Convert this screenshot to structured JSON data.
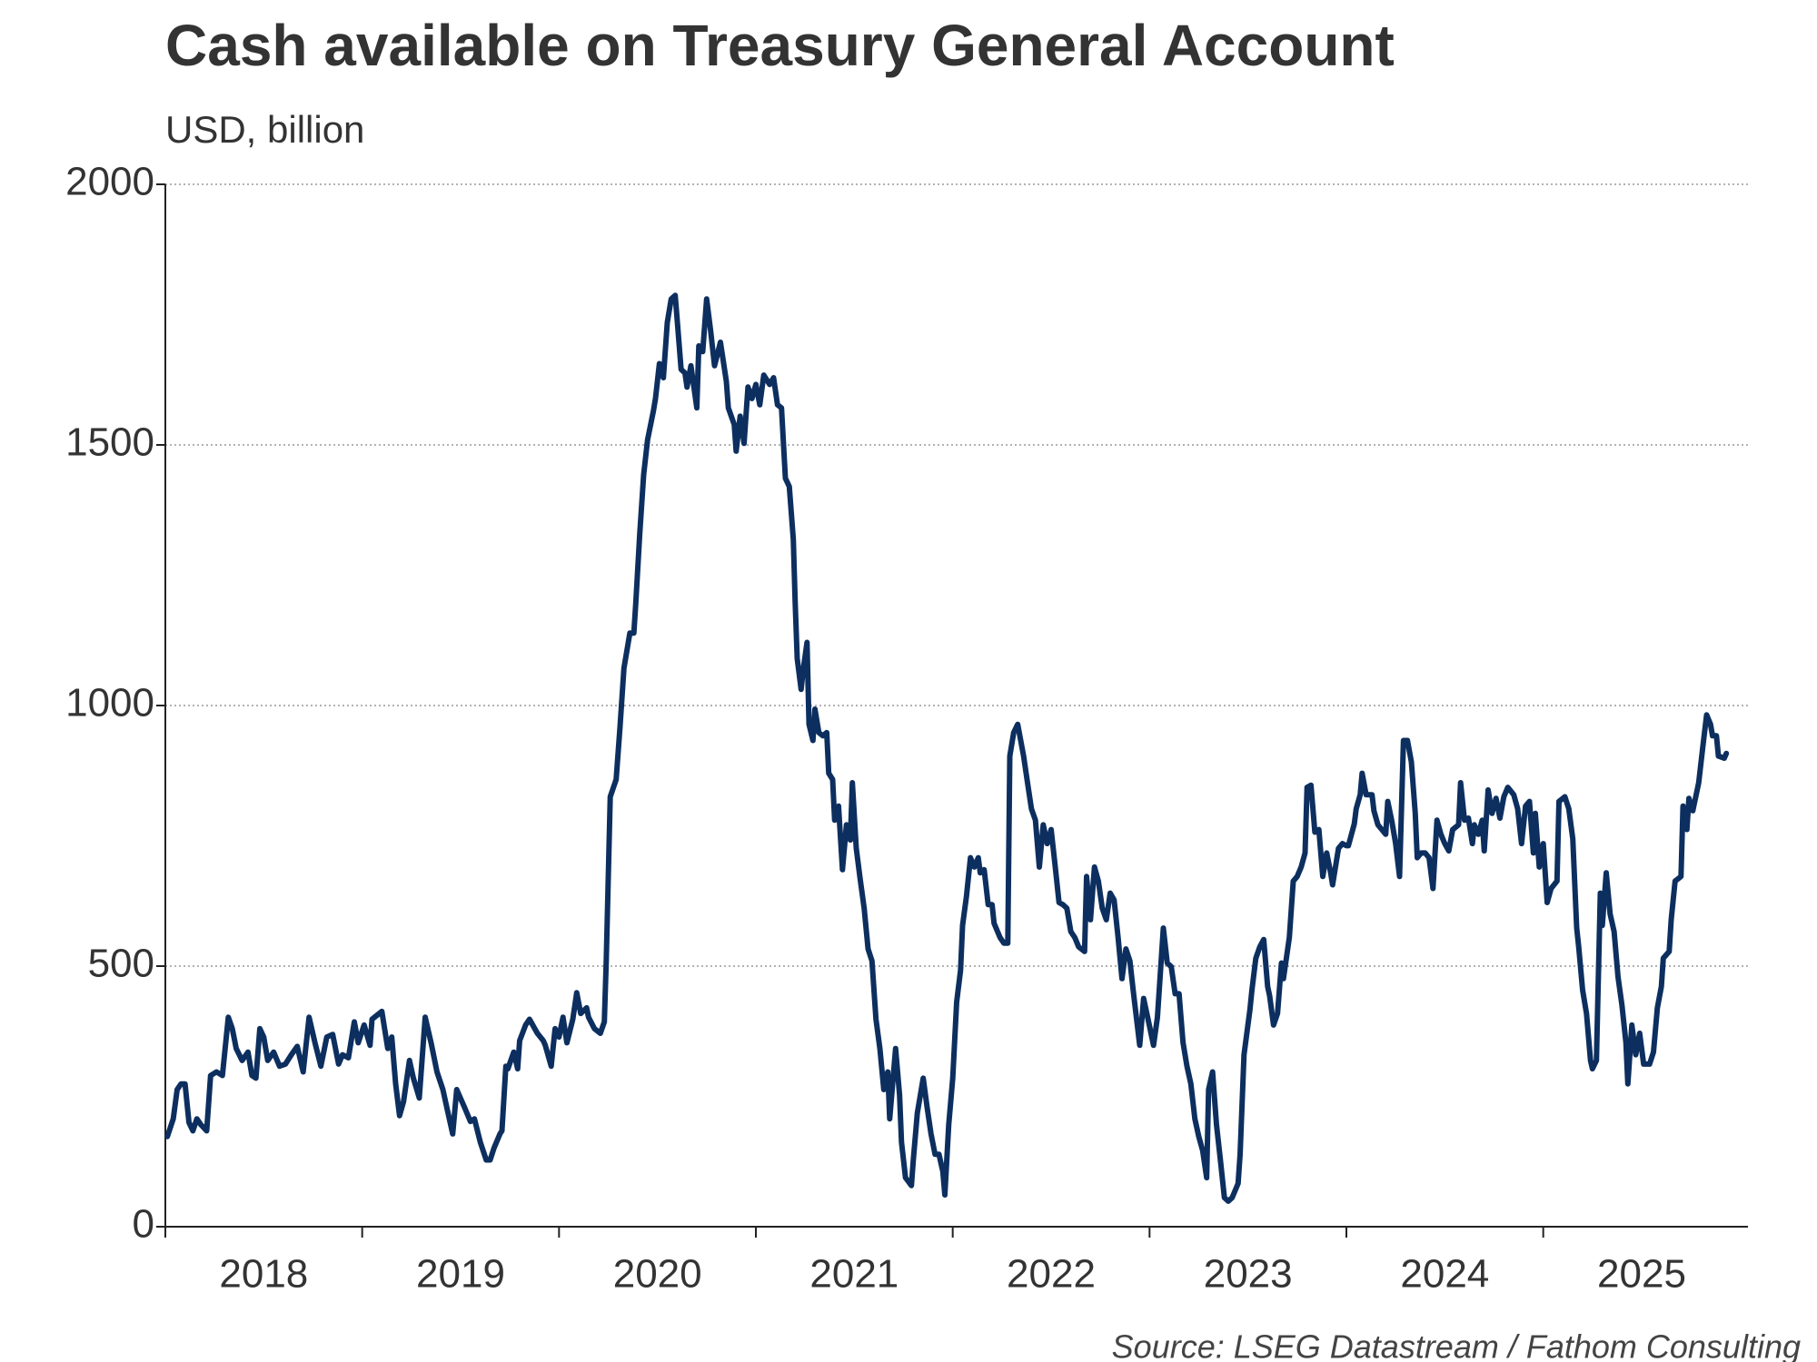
{
  "chart_data": {
    "type": "line",
    "title": "Cash available on Treasury General Account",
    "subtitle": "USD, billion",
    "source": "Source: LSEG Datastream / Fathom Consulting",
    "color": "#0d2f5f",
    "grid": true,
    "xlim": [
      2018,
      2026.04
    ],
    "ylim": [
      0,
      2000
    ],
    "yticks": [
      0,
      500,
      1000,
      1500,
      2000
    ],
    "xticks": [
      2018,
      2019,
      2020,
      2021,
      2022,
      2023,
      2024,
      2025
    ],
    "x": [
      2018.01,
      2018.04,
      2018.06,
      2018.08,
      2018.1,
      2018.12,
      2018.14,
      2018.16,
      2018.18,
      2018.21,
      2018.23,
      2018.26,
      2018.29,
      2018.32,
      2018.34,
      2018.36,
      2018.39,
      2018.42,
      2018.44,
      2018.46,
      2018.48,
      2018.5,
      2018.52,
      2018.55,
      2018.58,
      2018.61,
      2018.64,
      2018.67,
      2018.7,
      2018.73,
      2018.76,
      2018.79,
      2018.82,
      2018.85,
      2018.88,
      2018.9,
      2018.93,
      2018.96,
      2018.98,
      2019.01,
      2019.04,
      2019.05,
      2019.1,
      2019.13,
      2019.15,
      2019.17,
      2019.19,
      2019.21,
      2019.24,
      2019.26,
      2019.29,
      2019.32,
      2019.35,
      2019.38,
      2019.41,
      2019.43,
      2019.46,
      2019.48,
      2019.52,
      2019.55,
      2019.57,
      2019.6,
      2019.63,
      2019.65,
      2019.67,
      2019.7,
      2019.71,
      2019.73,
      2019.74,
      2019.77,
      2019.79,
      2019.8,
      2019.83,
      2019.85,
      2019.89,
      2019.92,
      2019.93,
      2019.96,
      2019.98,
      2020.0,
      2020.02,
      2020.04,
      2020.07,
      2020.09,
      2020.11,
      2020.14,
      2020.15,
      2020.18,
      2020.21,
      2020.23,
      2020.24,
      2020.26,
      2020.29,
      2020.31,
      2020.33,
      2020.36,
      2020.38,
      2020.39,
      2020.41,
      2020.43,
      2020.45,
      2020.48,
      2020.49,
      2020.51,
      2020.53,
      2020.55,
      2020.57,
      2020.59,
      2020.6,
      2020.62,
      2020.64,
      2020.65,
      2020.67,
      2020.7,
      2020.71,
      2020.73,
      2020.75,
      2020.77,
      2020.79,
      2020.8,
      2020.82,
      2020.85,
      2020.86,
      2020.89,
      2020.9,
      2020.92,
      2020.94,
      2020.96,
      2020.98,
      2021.0,
      2021.02,
      2021.04,
      2021.07,
      2021.09,
      2021.11,
      2021.13,
      2021.15,
      2021.17,
      2021.19,
      2021.2,
      2021.21,
      2021.23,
      2021.24,
      2021.26,
      2021.27,
      2021.29,
      2021.3,
      2021.32,
      2021.34,
      2021.36,
      2021.37,
      2021.39,
      2021.4,
      2021.42,
      2021.44,
      2021.46,
      2021.48,
      2021.49,
      2021.51,
      2021.53,
      2021.55,
      2021.57,
      2021.59,
      2021.61,
      2021.63,
      2021.65,
      2021.67,
      2021.68,
      2021.71,
      2021.73,
      2021.74,
      2021.76,
      2021.79,
      2021.8,
      2021.82,
      2021.85,
      2021.87,
      2021.89,
      2021.91,
      2021.93,
      2021.95,
      2021.96,
      2021.98,
      2022.0,
      2022.02,
      2022.04,
      2022.05,
      2022.07,
      2022.09,
      2022.11,
      2022.13,
      2022.14,
      2022.16,
      2022.18,
      2022.2,
      2022.21,
      2022.24,
      2022.26,
      2022.28,
      2022.29,
      2022.31,
      2022.33,
      2022.36,
      2022.38,
      2022.4,
      2022.42,
      2022.44,
      2022.46,
      2022.48,
      2022.5,
      2022.52,
      2022.54,
      2022.56,
      2022.58,
      2022.6,
      2022.62,
      2022.64,
      2022.67,
      2022.68,
      2022.7,
      2022.72,
      2022.74,
      2022.76,
      2022.78,
      2022.8,
      2022.82,
      2022.84,
      2022.86,
      2022.88,
      2022.9,
      2022.92,
      2022.95,
      2022.97,
      2022.99,
      2023.02,
      2023.04,
      2023.07,
      2023.09,
      2023.11,
      2023.13,
      2023.15,
      2023.17,
      2023.19,
      2023.21,
      2023.23,
      2023.25,
      2023.27,
      2023.29,
      2023.3,
      2023.32,
      2023.34,
      2023.36,
      2023.38,
      2023.4,
      2023.42,
      2023.45,
      2023.46,
      2023.48,
      2023.51,
      2023.52,
      2023.54,
      2023.56,
      2023.58,
      2023.6,
      2023.61,
      2023.63,
      2023.65,
      2023.67,
      2023.68,
      2023.71,
      2023.73,
      2023.75,
      2023.77,
      2023.79,
      2023.8,
      2023.82,
      2023.84,
      2023.86,
      2023.88,
      2023.9,
      2023.92,
      2023.93,
      2023.96,
      2023.98,
      2024.0,
      2024.01,
      2024.04,
      2024.05,
      2024.07,
      2024.08,
      2024.1,
      2024.13,
      2024.14,
      2024.16,
      2024.18,
      2024.2,
      2024.21,
      2024.23,
      2024.25,
      2024.27,
      2024.29,
      2024.31,
      2024.33,
      2024.35,
      2024.36,
      2024.38,
      2024.4,
      2024.42,
      2024.44,
      2024.46,
      2024.48,
      2024.5,
      2024.52,
      2024.54,
      2024.57,
      2024.58,
      2024.6,
      2024.62,
      2024.64,
      2024.65,
      2024.67,
      2024.69,
      2024.7,
      2024.72,
      2024.74,
      2024.76,
      2024.78,
      2024.8,
      2024.82,
      2024.85,
      2024.87,
      2024.89,
      2024.91,
      2024.93,
      2024.95,
      2024.96,
      2024.98,
      2025.0,
      2025.02,
      2025.04,
      2025.07,
      2025.08,
      2025.11,
      2025.13,
      2025.15,
      2025.17,
      2025.18,
      2025.2,
      2025.22,
      2025.24,
      2025.25,
      2025.27,
      2025.29,
      2025.3,
      2025.32,
      2025.34,
      2025.36,
      2025.38,
      2025.4,
      2025.42,
      2025.43,
      2025.45,
      2025.47,
      2025.49,
      2025.51,
      2025.54,
      2025.56,
      2025.58,
      2025.6,
      2025.61,
      2025.64,
      2025.65,
      2025.67,
      2025.7,
      2025.71,
      2025.73,
      2025.74,
      2025.76,
      2025.79,
      2025.81,
      2025.83,
      2025.85,
      2025.86,
      2025.88,
      2025.89,
      2025.92,
      2025.93
    ],
    "values": [
      173,
      207,
      263,
      274,
      274,
      200,
      184,
      207,
      196,
      184,
      290,
      297,
      290,
      402,
      380,
      342,
      319,
      335,
      290,
      285,
      380,
      364,
      319,
      335,
      308,
      312,
      330,
      346,
      297,
      402,
      353,
      308,
      364,
      369,
      312,
      330,
      324,
      393,
      353,
      387,
      348,
      398,
      413,
      342,
      364,
      274,
      213,
      240,
      319,
      285,
      247,
      402,
      353,
      297,
      263,
      229,
      178,
      263,
      229,
      202,
      207,
      162,
      128,
      128,
      151,
      178,
      184,
      308,
      303,
      335,
      303,
      357,
      387,
      398,
      371,
      357,
      348,
      308,
      380,
      364,
      402,
      353,
      398,
      449,
      409,
      420,
      402,
      380,
      371,
      393,
      510,
      825,
      858,
      960,
      1072,
      1139,
      1139,
      1196,
      1330,
      1443,
      1510,
      1566,
      1589,
      1656,
      1629,
      1735,
      1780,
      1787,
      1742,
      1645,
      1638,
      1611,
      1652,
      1571,
      1690,
      1679,
      1780,
      1719,
      1652,
      1667,
      1697,
      1622,
      1571,
      1539,
      1488,
      1555,
      1503,
      1611,
      1589,
      1616,
      1577,
      1634,
      1616,
      1629,
      1577,
      1571,
      1436,
      1420,
      1319,
      1196,
      1090,
      1031,
      1067,
      1121,
      964,
      933,
      993,
      948,
      942,
      948,
      870,
      858,
      780,
      807,
      685,
      771,
      742,
      852,
      726,
      667,
      611,
      533,
      510,
      398,
      342,
      263,
      297,
      207,
      342,
      252,
      162,
      94,
      79,
      128,
      218,
      285,
      229,
      178,
      139,
      139,
      106,
      61,
      196,
      285,
      431,
      492,
      578,
      634,
      708,
      690,
      708,
      679,
      685,
      618,
      618,
      582,
      555,
      544,
      544,
      903,
      948,
      964,
      903,
      852,
      802,
      780,
      690,
      771,
      735,
      762,
      694,
      622,
      618,
      611,
      566,
      555,
      537,
      528,
      672,
      589,
      690,
      663,
      611,
      589,
      640,
      627,
      555,
      476,
      533,
      510,
      443,
      348,
      438,
      402,
      348,
      402,
      573,
      506,
      499,
      447,
      447,
      353,
      308,
      274,
      207,
      173,
      146,
      94,
      263,
      297,
      196,
      128,
      56,
      49,
      56,
      83,
      139,
      330,
      416,
      454,
      515,
      537,
      551,
      461,
      443,
      387,
      409,
      506,
      476,
      555,
      663,
      672,
      690,
      717,
      843,
      847,
      757,
      762,
      672,
      717,
      679,
      656,
      726,
      735,
      731,
      731,
      773,
      802,
      829,
      870,
      829,
      829,
      798,
      771,
      762,
      753,
      816,
      780,
      735,
      672,
      933,
      933,
      892,
      793,
      708,
      717,
      717,
      708,
      649,
      780,
      753,
      735,
      721,
      762,
      771,
      852,
      780,
      784,
      735,
      771,
      753,
      780,
      721,
      838,
      793,
      822,
      784,
      825,
      843,
      829,
      802,
      735,
      807,
      816,
      717,
      793,
      690,
      735,
      622,
      649,
      663,
      816,
      825,
      802,
      744,
      573,
      537,
      454,
      409,
      319,
      303,
      319,
      640,
      578,
      679,
      600,
      566,
      479,
      425,
      353,
      274,
      387,
      330,
      371,
      312,
      312,
      335,
      420,
      461,
      515,
      528,
      589,
      663,
      672,
      807,
      762,
      822,
      798,
      852,
      919,
      982,
      964,
      942,
      942,
      903,
      899,
      908
    ]
  }
}
